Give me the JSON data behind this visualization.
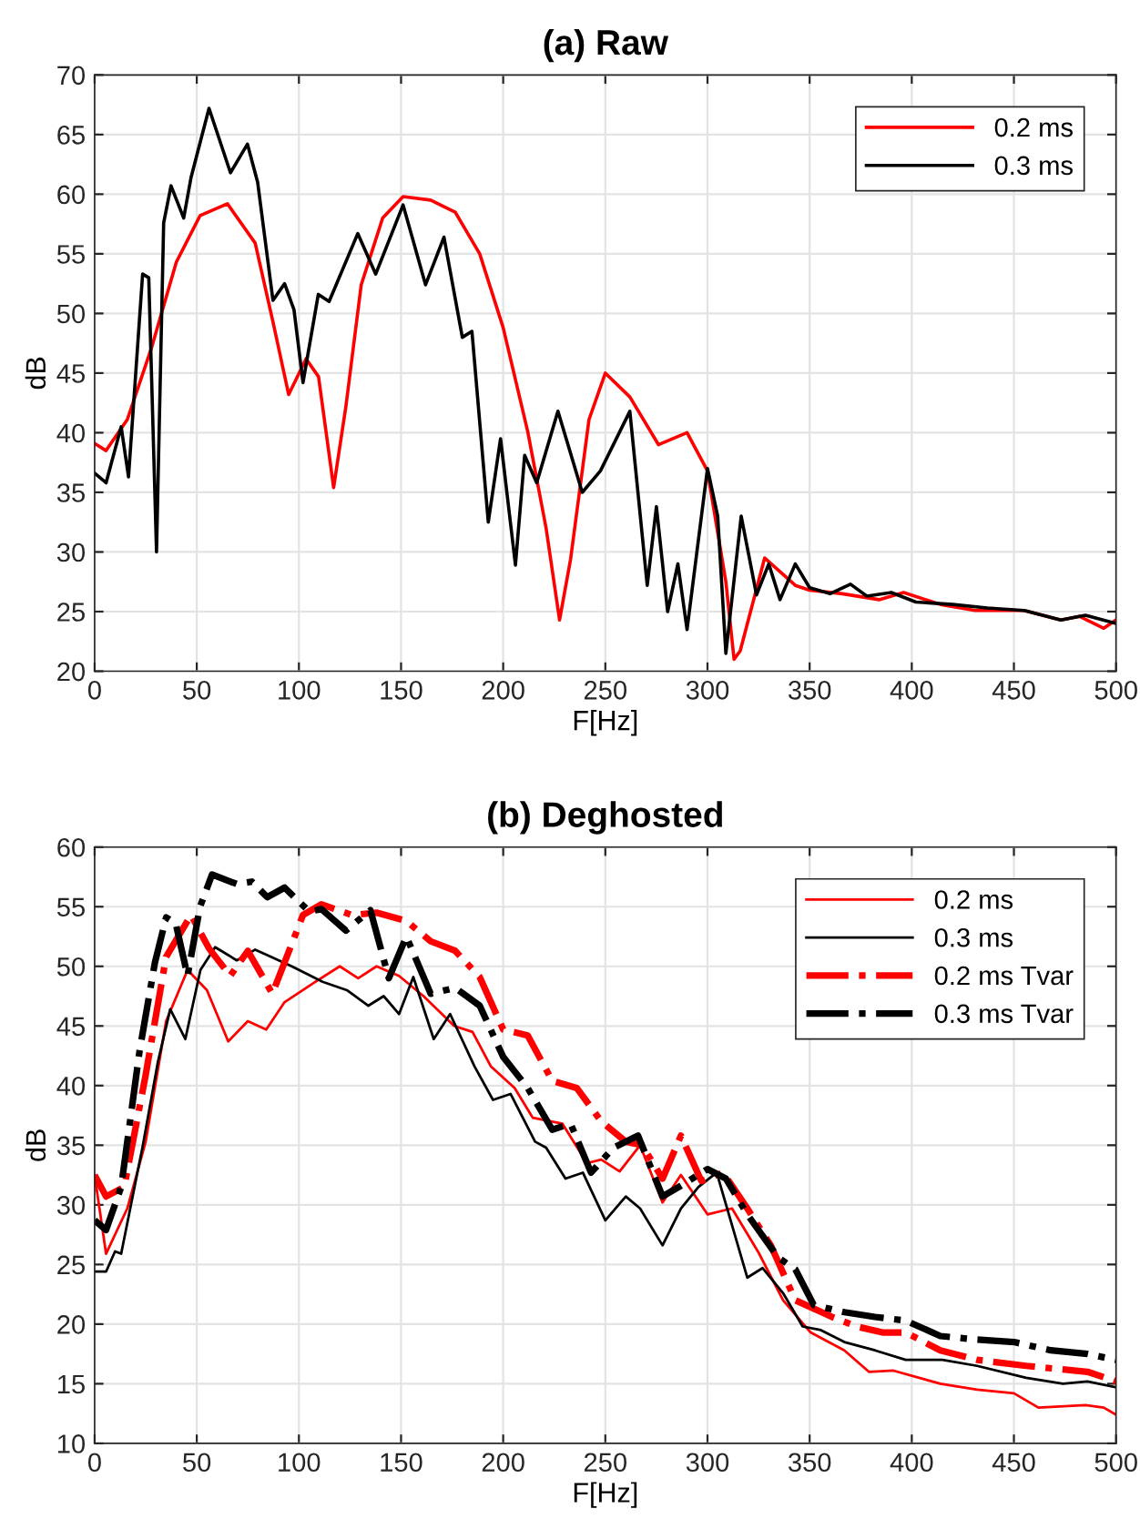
{
  "chart_data": [
    {
      "type": "line",
      "title": "(a) Raw",
      "xlabel": "F[Hz]",
      "ylabel": "dB",
      "xlim": [
        0,
        500
      ],
      "ylim": [
        20,
        70
      ],
      "xticks": [
        0,
        50,
        100,
        150,
        200,
        250,
        300,
        350,
        400,
        450,
        500
      ],
      "yticks": [
        20,
        25,
        30,
        35,
        40,
        45,
        50,
        55,
        60,
        65,
        70
      ],
      "grid": true,
      "legend": "top right",
      "marker": "none",
      "series": [
        {
          "name": "0.2 ms",
          "color": "#ff0000",
          "line_style": "solid",
          "x": [
            0,
            5.6,
            16,
            28,
            40,
            51.6,
            65,
            78.6,
            87.3,
            95,
            103.5,
            109.6,
            117,
            123,
            130.5,
            141,
            151,
            164.5,
            176.5,
            188.5,
            200,
            212,
            221,
            227.6,
            233,
            242,
            250,
            262,
            276,
            290,
            300,
            309,
            313,
            316,
            328,
            343,
            350,
            366,
            384,
            396,
            414,
            431,
            455,
            473,
            482,
            494,
            500
          ],
          "values": [
            39.1,
            38.5,
            41.1,
            47.2,
            54.3,
            58.2,
            59.2,
            55.9,
            49.3,
            43.2,
            46.2,
            44.7,
            35.4,
            42.2,
            52.4,
            58,
            59.8,
            59.5,
            58.5,
            55,
            48.8,
            40.1,
            32,
            24.3,
            29.4,
            41.1,
            45,
            43,
            39,
            40,
            36.8,
            27.5,
            21,
            21.7,
            29.5,
            27.2,
            26.8,
            26.5,
            26,
            26.6,
            25.6,
            25.1,
            25.1,
            24.3,
            24.6,
            23.6,
            24.3
          ]
        },
        {
          "name": "0.3 ms",
          "color": "#000000",
          "line_style": "solid",
          "x": [
            0,
            5.6,
            13,
            16.6,
            23.5,
            26.5,
            30.3,
            33.8,
            37.4,
            43.6,
            47.2,
            56,
            66.5,
            74.8,
            79.8,
            87.3,
            93,
            97.6,
            102,
            109.5,
            114.8,
            128.8,
            137.6,
            151,
            162,
            171,
            180,
            184.7,
            192.7,
            198.7,
            206,
            210.5,
            216.4,
            226.8,
            238.7,
            247.6,
            262,
            270.5,
            275,
            280.5,
            285.5,
            290,
            300,
            305,
            309,
            316.5,
            324,
            330,
            335.5,
            343,
            350,
            360,
            370,
            378,
            390,
            402,
            420,
            437,
            455,
            473,
            485,
            500
          ],
          "values": [
            36.6,
            35.8,
            40.5,
            36.3,
            53.3,
            53,
            30,
            57.6,
            60.7,
            58,
            61.4,
            67.2,
            61.8,
            64.2,
            61,
            51.1,
            52.5,
            50.3,
            44.2,
            51.6,
            51,
            56.7,
            53.3,
            59.1,
            52.4,
            56.4,
            48,
            48.5,
            32.5,
            39.5,
            28.9,
            38.1,
            35.8,
            41.8,
            35,
            36.8,
            41.8,
            27.2,
            33.8,
            25,
            29,
            23.5,
            37,
            33,
            21.5,
            33,
            26.4,
            29,
            26,
            29,
            27,
            26.5,
            27.3,
            26.3,
            26.6,
            25.8,
            25.6,
            25.3,
            25.1,
            24.3,
            24.7,
            24
          ]
        }
      ]
    },
    {
      "type": "line",
      "title": "(b) Deghosted",
      "xlabel": "F[Hz]",
      "ylabel": "dB",
      "xlim": [
        0,
        500
      ],
      "ylim": [
        10,
        60
      ],
      "xticks": [
        0,
        50,
        100,
        150,
        200,
        250,
        300,
        350,
        400,
        450,
        500
      ],
      "yticks": [
        10,
        15,
        20,
        25,
        30,
        35,
        40,
        45,
        50,
        55,
        60
      ],
      "grid": true,
      "legend": "top right",
      "marker": "none",
      "series": [
        {
          "name": "0.2 ms",
          "color": "#ff0000",
          "line_style": "solid",
          "x": [
            0,
            5.6,
            16,
            25,
            35,
            45.5,
            55,
            65.4,
            75,
            84,
            93,
            108,
            120,
            129,
            138,
            149,
            161,
            176,
            185,
            194,
            205.6,
            214.5,
            229,
            241,
            248,
            257,
            267,
            278,
            287,
            300,
            312,
            325,
            337,
            350.5,
            367,
            379,
            391,
            414,
            432,
            450,
            462,
            485,
            494,
            500
          ],
          "values": [
            32.5,
            25.9,
            29.7,
            35.3,
            45.4,
            49.7,
            48,
            43.7,
            45.4,
            44.7,
            47,
            48.7,
            50,
            49,
            50,
            49.2,
            47.5,
            45,
            44.5,
            41.6,
            39.8,
            37.3,
            36.8,
            33.5,
            33.8,
            32.8,
            35,
            30.2,
            32.5,
            29.2,
            29.7,
            26,
            22,
            19.3,
            17.8,
            16,
            16.1,
            15,
            14.5,
            14.2,
            13,
            13.2,
            13,
            12.4
          ]
        },
        {
          "name": "0.3 ms",
          "color": "#000000",
          "line_style": "solid",
          "x": [
            0,
            5.6,
            10,
            13,
            23.4,
            31,
            37,
            44.4,
            51.8,
            59,
            69.6,
            78.6,
            87.5,
            96.5,
            111.6,
            123.5,
            134,
            141.5,
            149,
            156,
            166,
            174,
            186,
            195,
            203.6,
            215.6,
            221,
            230.5,
            239,
            250,
            260,
            267,
            278,
            287,
            295.6,
            304.5,
            319.5,
            327,
            337,
            346.6,
            355.5,
            367,
            382,
            397,
            415,
            432,
            456,
            474,
            486,
            500
          ],
          "values": [
            24.4,
            24.4,
            26.1,
            25.9,
            34.8,
            42,
            46.4,
            43.9,
            49.7,
            51.6,
            50.5,
            51.4,
            50.7,
            50,
            48.7,
            48,
            46.7,
            47.5,
            46,
            49.1,
            43.9,
            46,
            41.6,
            38.8,
            39.3,
            35.3,
            34.8,
            32.2,
            32.7,
            28.7,
            30.7,
            29.7,
            26.6,
            29.7,
            31.5,
            32.7,
            23.9,
            24.7,
            22.6,
            19.8,
            19.5,
            18.5,
            17.8,
            17,
            17,
            16.5,
            15.5,
            15,
            15.2,
            14.7
          ]
        },
        {
          "name": "0.2 ms Tvar",
          "color": "#ff0000",
          "line_style": "dashdot",
          "x": [
            0,
            5.6,
            14.5,
            25,
            35,
            47.2,
            56,
            66.4,
            75,
            87,
            102,
            111,
            126,
            138,
            152.6,
            164.5,
            176.5,
            188.5,
            200,
            212,
            224,
            236,
            248,
            260,
            268,
            278,
            287,
            297,
            307.7,
            319.5,
            331,
            343,
            361,
            373,
            385.7,
            397,
            414,
            432,
            456,
            474,
            486,
            500
          ],
          "values": [
            32.5,
            30.7,
            31.5,
            40.9,
            50.8,
            54.3,
            51.5,
            49.2,
            51.3,
            47.7,
            54.3,
            55.2,
            54.3,
            54.5,
            53.8,
            52.1,
            51.3,
            49.1,
            44.7,
            44.2,
            40.4,
            39.8,
            37,
            35.3,
            35,
            32.2,
            35.8,
            32,
            32.7,
            29.7,
            26.6,
            22,
            20.6,
            19.8,
            19.3,
            19.3,
            17.8,
            17,
            16.5,
            16.2,
            16,
            15.2
          ]
        },
        {
          "name": "0.3 ms Tvar",
          "color": "#000000",
          "line_style": "dashdot",
          "x": [
            0,
            5.6,
            13,
            22,
            29.5,
            35,
            39.7,
            45.5,
            51.6,
            57.5,
            69.6,
            77,
            84.5,
            93,
            105,
            111,
            123,
            135,
            144,
            152.6,
            164.5,
            176.5,
            188.5,
            200,
            212,
            224,
            233,
            243,
            254,
            266,
            278,
            286,
            300,
            309,
            319.5,
            334.5,
            343,
            352,
            367,
            382,
            397,
            414,
            432,
            450,
            468,
            486,
            500
          ],
          "values": [
            28.7,
            27.9,
            31.5,
            42.9,
            50.3,
            54.1,
            53.6,
            49.2,
            55,
            57.7,
            56.9,
            57.1,
            55.8,
            56.6,
            54.6,
            54.8,
            53,
            54.7,
            49,
            52.5,
            47.7,
            48.2,
            46.7,
            42.4,
            39.8,
            36.3,
            36.8,
            32.7,
            34.8,
            35.8,
            30.7,
            31.5,
            33,
            32.2,
            29.2,
            25.6,
            24.6,
            21.6,
            21,
            20.6,
            20.3,
            19,
            18.7,
            18.5,
            17.8,
            17.5,
            17
          ]
        }
      ]
    }
  ]
}
